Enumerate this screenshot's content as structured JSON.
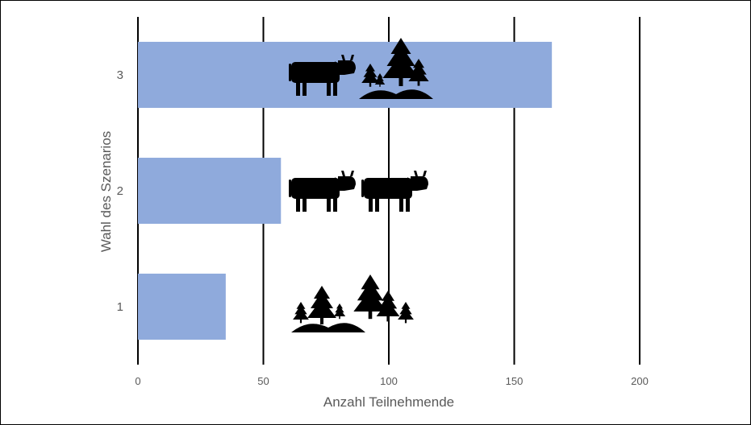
{
  "chart_data": {
    "type": "bar",
    "orientation": "horizontal",
    "categories": [
      "1",
      "2",
      "3"
    ],
    "values": [
      35,
      57,
      165
    ],
    "xlabel": "Anzahl Teilnehmende",
    "ylabel": "Wahl des Szenarios",
    "xlim": [
      0,
      200
    ],
    "xticks": [
      "0",
      "50",
      "100",
      "150",
      "200"
    ],
    "grid": "vertical",
    "bar_color": "#8faadc",
    "icons": {
      "1": [
        "forest-icon"
      ],
      "2": [
        "cow-icon",
        "cow-icon"
      ],
      "3": [
        "cow-icon",
        "forest-icon"
      ]
    }
  }
}
